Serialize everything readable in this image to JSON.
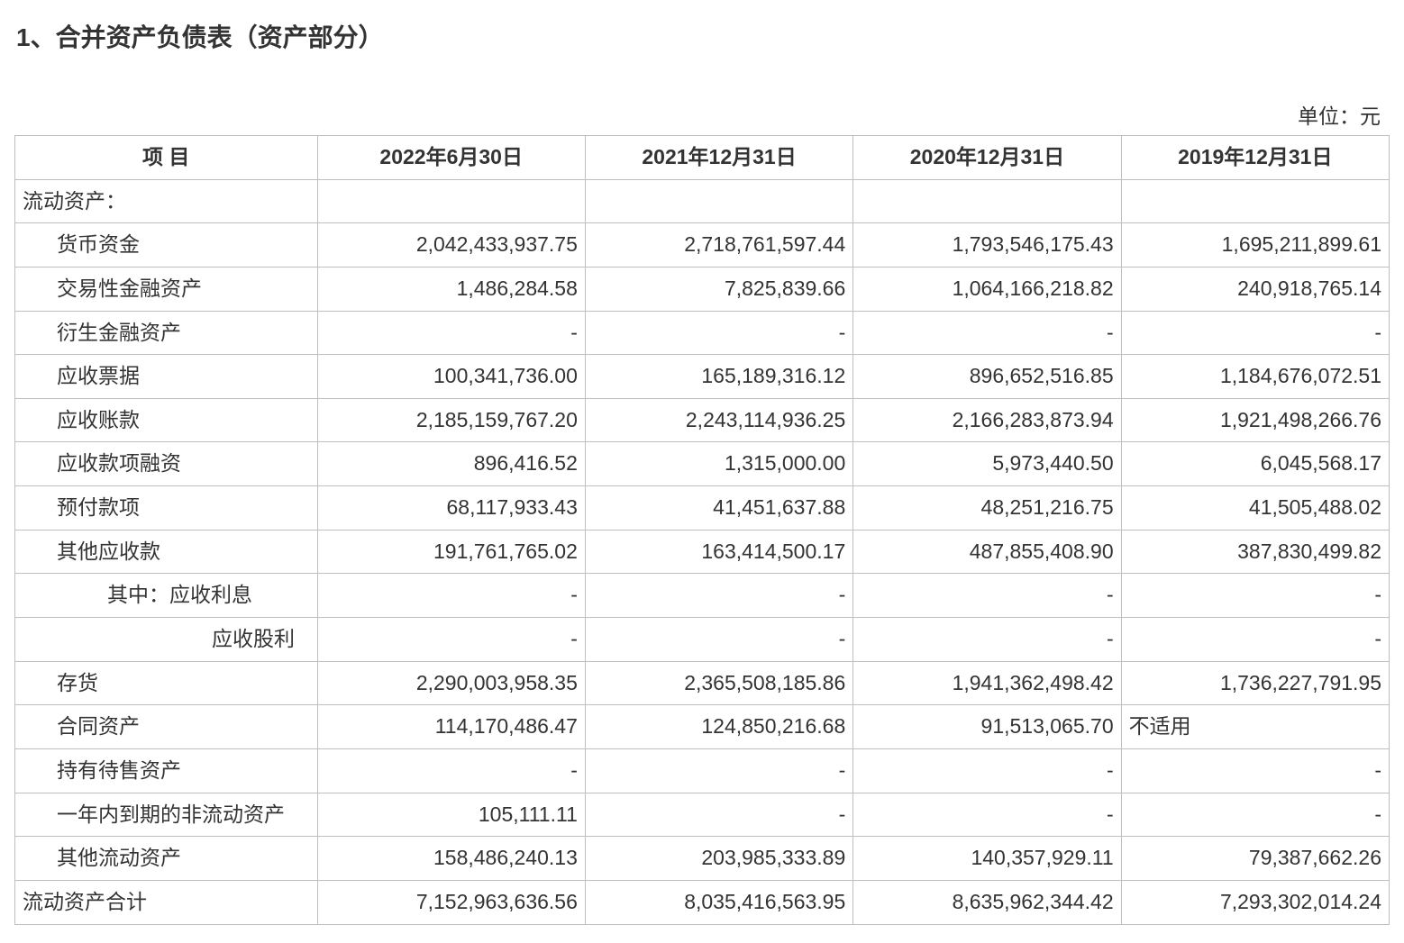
{
  "title": "1、合并资产负债表（资产部分）",
  "unit": "单位：元",
  "table": {
    "columns": [
      "项 目",
      "2022年6月30日",
      "2021年12月31日",
      "2020年12月31日",
      "2019年12月31日"
    ],
    "rows": [
      {
        "label": "流动资产：",
        "indent": 1,
        "values": [
          "",
          "",
          "",
          ""
        ]
      },
      {
        "label": "货币资金",
        "indent": 2,
        "values": [
          "2,042,433,937.75",
          "2,718,761,597.44",
          "1,793,546,175.43",
          "1,695,211,899.61"
        ]
      },
      {
        "label": "交易性金融资产",
        "indent": 2,
        "values": [
          "1,486,284.58",
          "7,825,839.66",
          "1,064,166,218.82",
          "240,918,765.14"
        ]
      },
      {
        "label": "衍生金融资产",
        "indent": 2,
        "values": [
          "-",
          "-",
          "-",
          "-"
        ]
      },
      {
        "label": "应收票据",
        "indent": 2,
        "values": [
          "100,341,736.00",
          "165,189,316.12",
          "896,652,516.85",
          "1,184,676,072.51"
        ]
      },
      {
        "label": "应收账款",
        "indent": 2,
        "values": [
          "2,185,159,767.20",
          "2,243,114,936.25",
          "2,166,283,873.94",
          "1,921,498,266.76"
        ]
      },
      {
        "label": "应收款项融资",
        "indent": 2,
        "values": [
          "896,416.52",
          "1,315,000.00",
          "5,973,440.50",
          "6,045,568.17"
        ]
      },
      {
        "label": "预付款项",
        "indent": 2,
        "values": [
          "68,117,933.43",
          "41,451,637.88",
          "48,251,216.75",
          "41,505,488.02"
        ]
      },
      {
        "label": "其他应收款",
        "indent": 2,
        "values": [
          "191,761,765.02",
          "163,414,500.17",
          "487,855,408.90",
          "387,830,499.82"
        ]
      },
      {
        "label": "其中：应收利息",
        "indent": 3,
        "values": [
          "-",
          "-",
          "-",
          "-"
        ]
      },
      {
        "label": "应收股利",
        "indent": 4,
        "multiline": true,
        "values": [
          "-",
          "-",
          "-",
          "-"
        ]
      },
      {
        "label": "存货",
        "indent": 2,
        "values": [
          "2,290,003,958.35",
          "2,365,508,185.86",
          "1,941,362,498.42",
          "1,736,227,791.95"
        ]
      },
      {
        "label": "合同资产",
        "indent": 2,
        "values": [
          "114,170,486.47",
          "124,850,216.68",
          "91,513,065.70",
          "不适用"
        ],
        "lastLeft": true
      },
      {
        "label": "持有待售资产",
        "indent": 2,
        "values": [
          "-",
          "-",
          "-",
          "-"
        ]
      },
      {
        "label": "一年内到期的非流动资产",
        "indent": 2,
        "values": [
          "105,111.11",
          "-",
          "-",
          "-"
        ]
      },
      {
        "label": "其他流动资产",
        "indent": 2,
        "values": [
          "158,486,240.13",
          "203,985,333.89",
          "140,357,929.11",
          "79,387,662.26"
        ]
      },
      {
        "label": "流动资产合计",
        "indent": 1,
        "values": [
          "7,152,963,636.56",
          "8,035,416,563.95",
          "8,635,962,344.42",
          "7,293,302,014.24"
        ]
      }
    ]
  },
  "style": {
    "background_color": "#ffffff",
    "text_color": "#333333",
    "border_color": "#bfbfbf",
    "title_fontsize": 28,
    "body_fontsize": 23,
    "font_family": "Microsoft YaHei"
  }
}
